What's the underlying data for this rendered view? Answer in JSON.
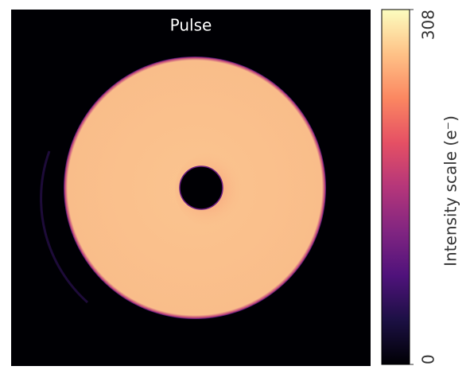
{
  "chart_data": {
    "type": "image",
    "title": "Pulse",
    "colorbar_label": "Intensity scale (e⁻)",
    "colormap": "magma",
    "clim": [
      0,
      308
    ],
    "cticks": [
      0,
      308
    ]
  }
}
